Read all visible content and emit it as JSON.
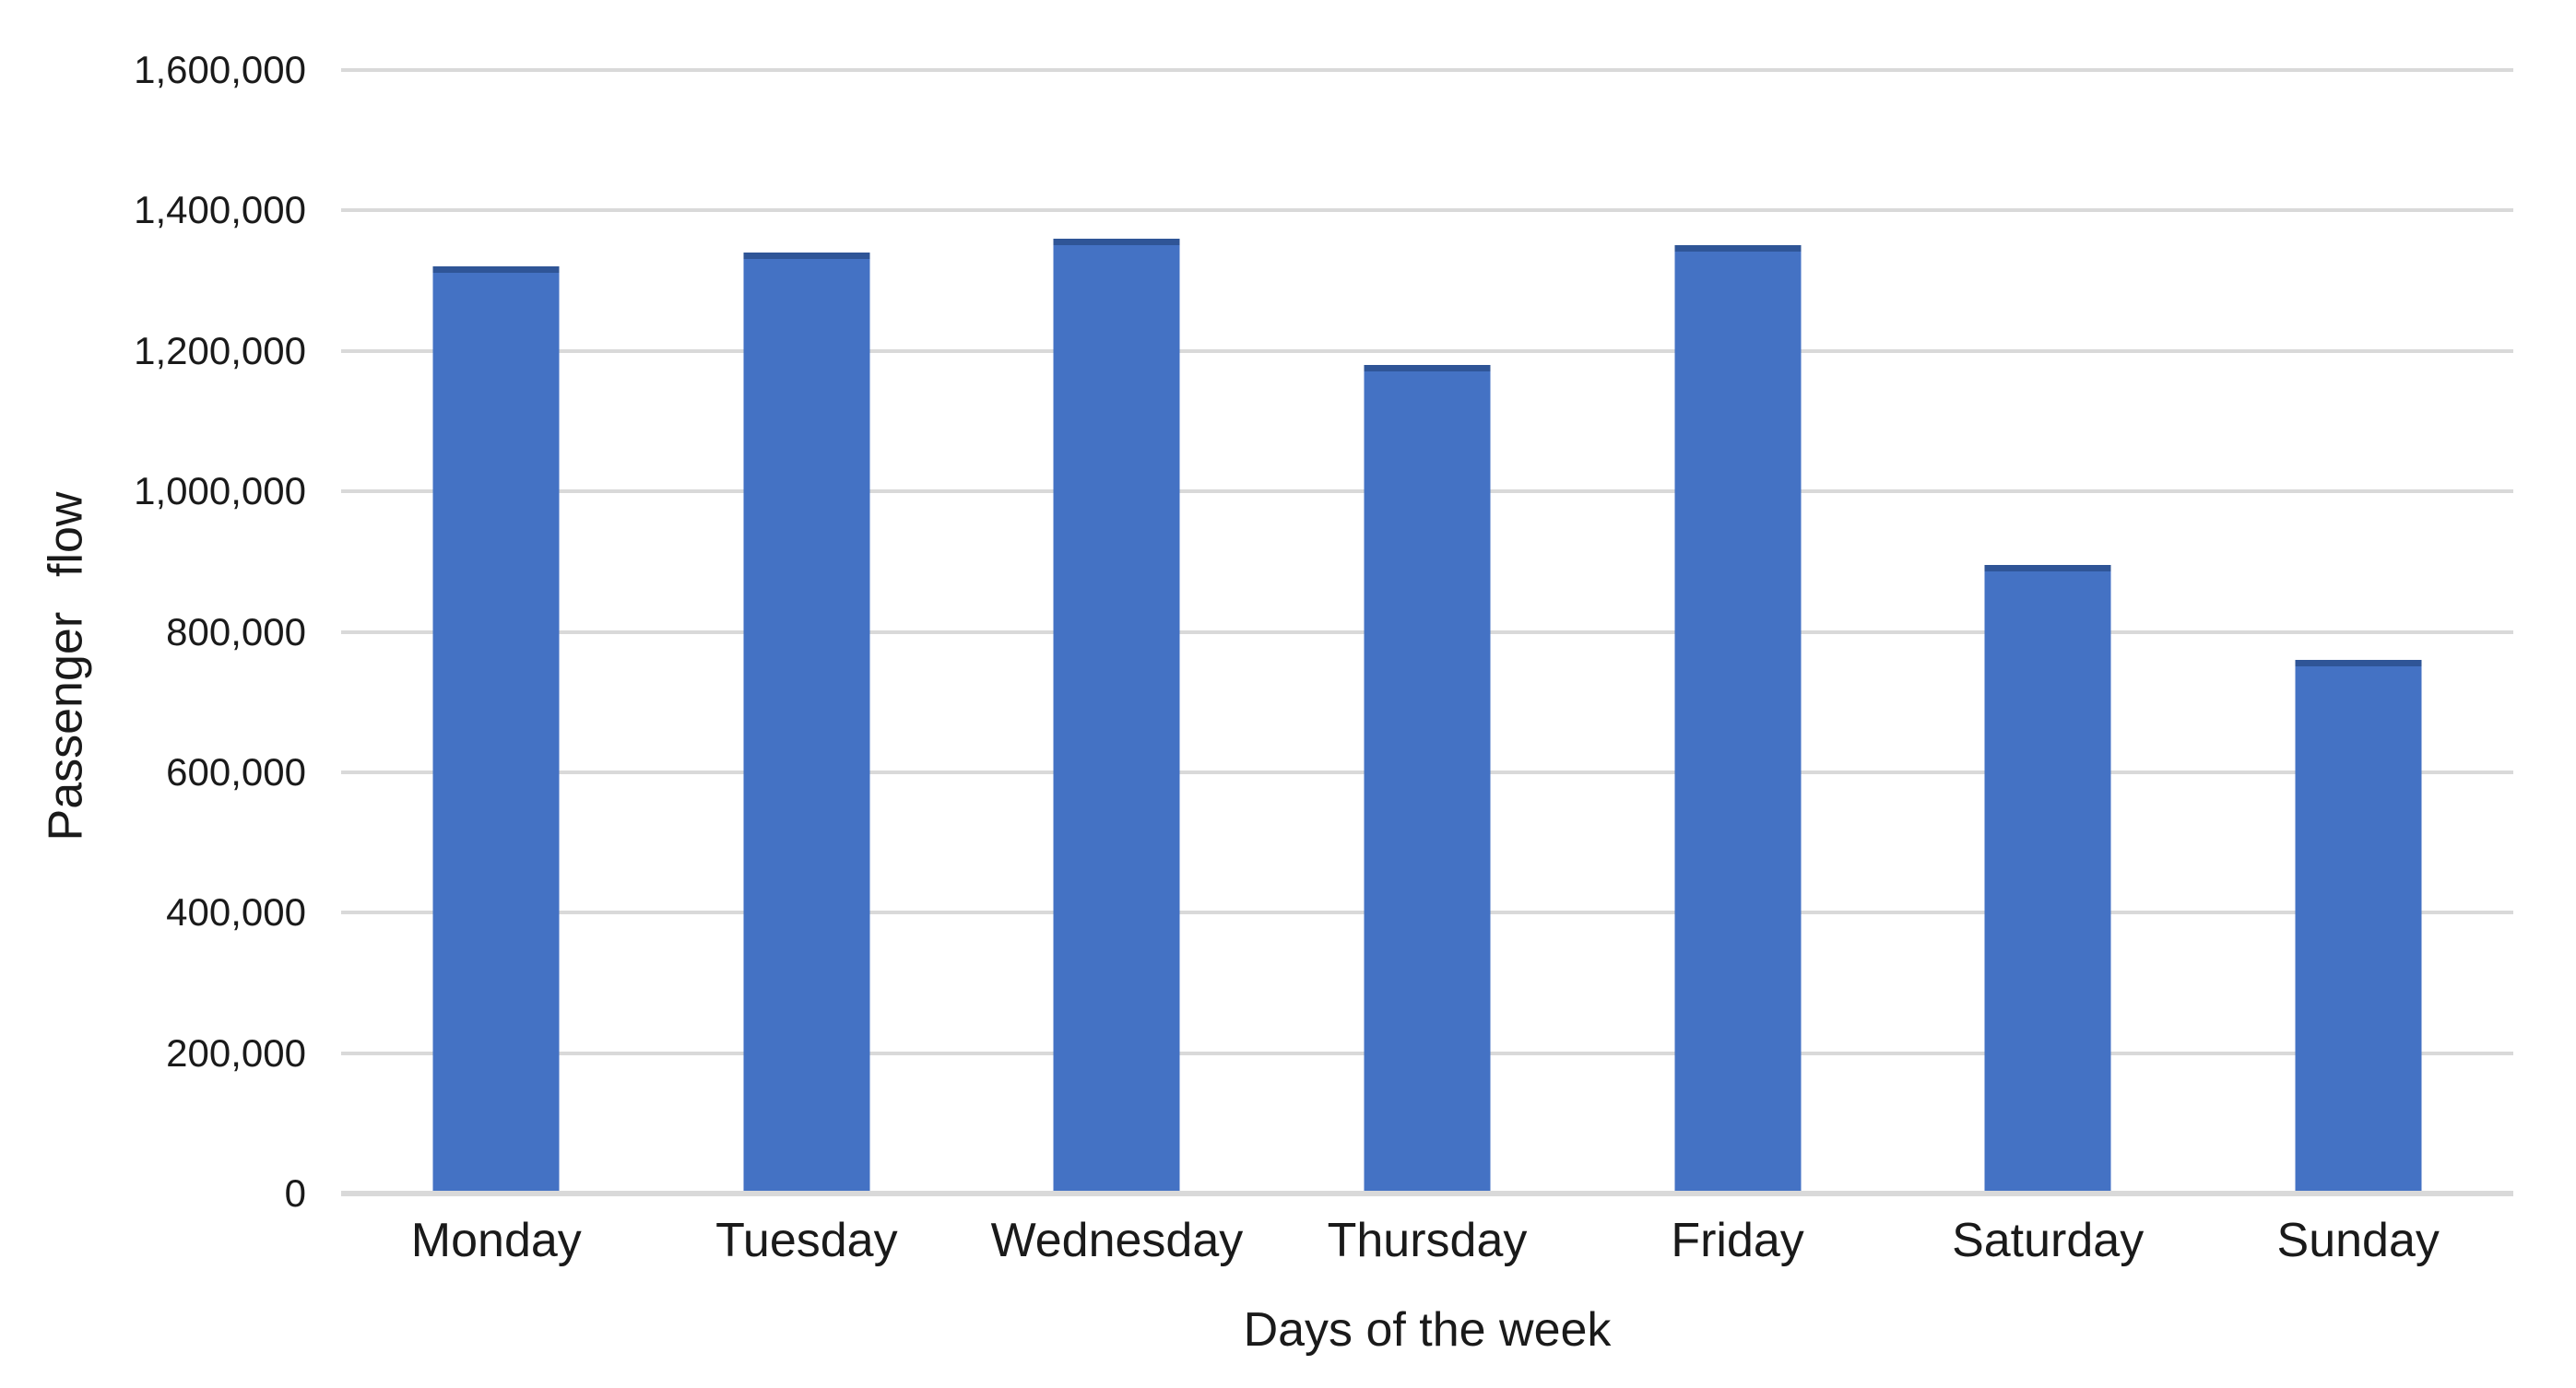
{
  "chart_data": {
    "type": "bar",
    "title": "",
    "xlabel": "Days of the week",
    "ylabel": "Passenger flow",
    "categories": [
      "Monday",
      "Tuesday",
      "Wednesday",
      "Thursday",
      "Friday",
      "Saturday",
      "Sunday"
    ],
    "values": [
      1320000,
      1340000,
      1360000,
      1180000,
      1350000,
      895000,
      760000
    ],
    "ylim": [
      0,
      1600000
    ],
    "y_tick_step": 200000,
    "y_tick_labels": [
      "0",
      "200,000",
      "400,000",
      "600,000",
      "800,000",
      "1,000,000",
      "1,200,000",
      "1,400,000",
      "1,600,000"
    ],
    "grid": "horizontal",
    "legend_position": "none",
    "colors": {
      "bar_fill": "#4472C4",
      "bar_top_edge": "#2F5597",
      "gridline": "#D9D9D9",
      "axis_baseline": "#D9D9D9",
      "text": "#1A1A1A",
      "background": "#FFFFFF"
    }
  }
}
